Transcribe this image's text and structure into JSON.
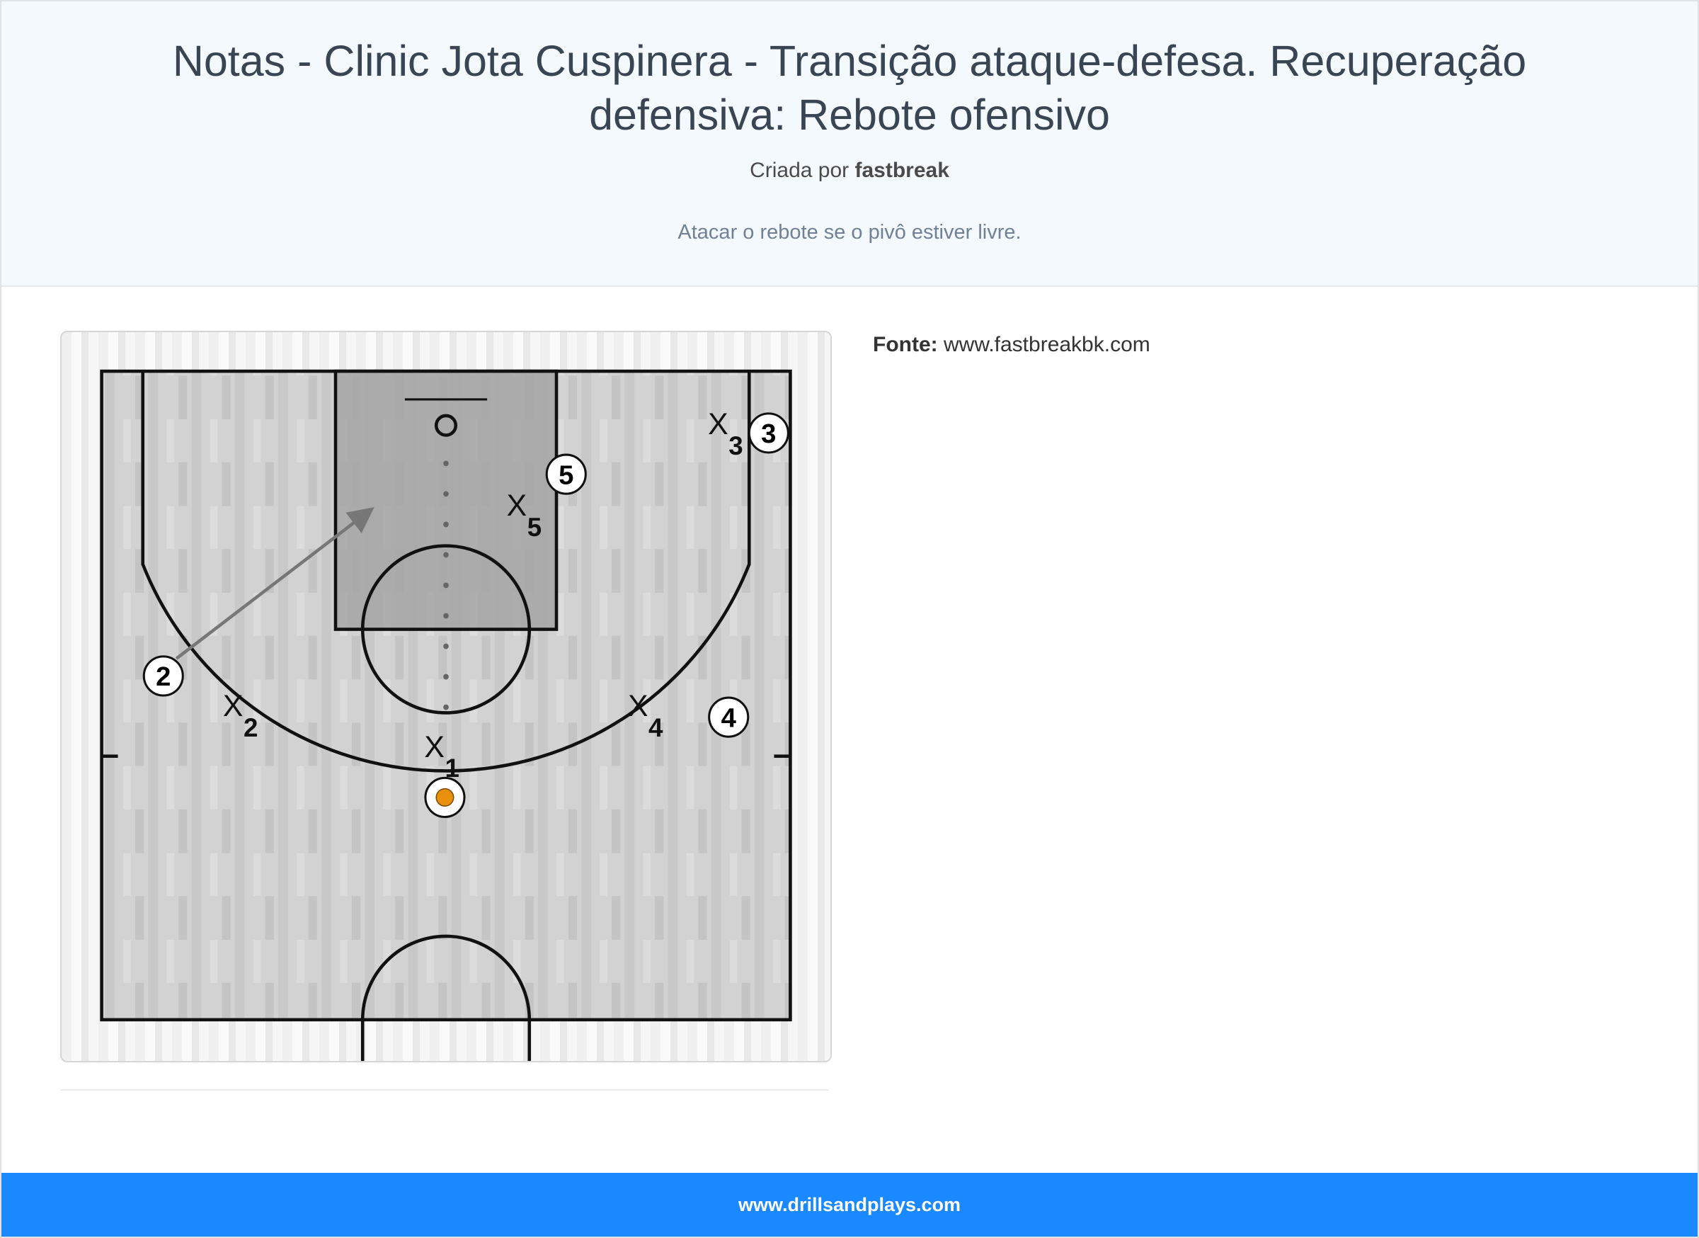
{
  "header": {
    "title": "Notas - Clinic Jota Cuspinera - Transição ataque-defesa. Recuperação defensiva: Rebote ofensivo",
    "byline_prefix": "Criada por",
    "author": "fastbreak",
    "description": "Atacar o rebote se o pivô estiver livre."
  },
  "source": {
    "label": "Fonte:",
    "value": "www.fastbreakbk.com"
  },
  "diagram": {
    "offense": [
      "2",
      "3",
      "4",
      "5"
    ],
    "defense": [
      {
        "x": "X",
        "n": "1"
      },
      {
        "x": "X",
        "n": "2"
      },
      {
        "x": "X",
        "n": "3"
      },
      {
        "x": "X",
        "n": "4"
      },
      {
        "x": "X",
        "n": "5"
      }
    ],
    "ball_color": "#e8900c"
  },
  "footer": {
    "text": "www.drillsandplays.com"
  },
  "colors": {
    "footer": "#1a88ff",
    "header_bg": "#f4f9fd"
  }
}
